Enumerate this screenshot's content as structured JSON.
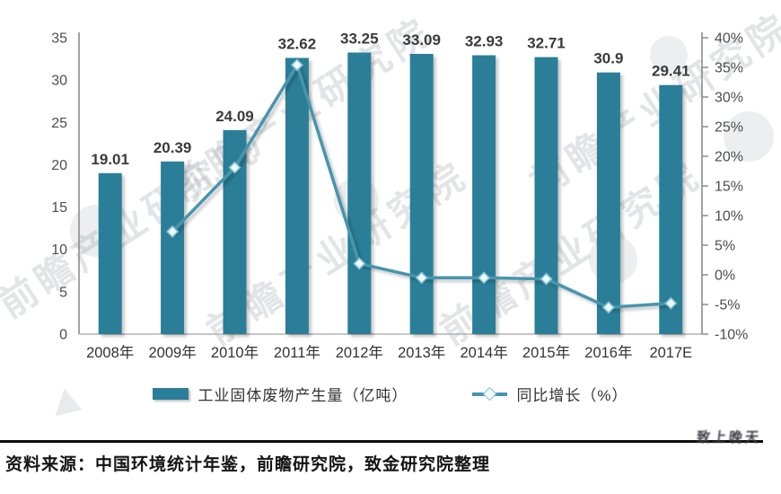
{
  "watermark": {
    "text": "前瞻产业研究院"
  },
  "legend": {
    "bar_label": "工业固体废物产生量（亿吨）",
    "line_label": "同比增长（%）"
  },
  "footer": {
    "source": "资料来源：中国环境统计年鉴，前瞻研究院，致金研究院整理",
    "logo": "致上晚天"
  },
  "colors": {
    "bar": "#2b7e97",
    "line": "#4695ad",
    "marker_fill": "#f0f9fb",
    "marker_stroke": "#7fc0d2",
    "bar_label": "#3a3a3a",
    "axis": "#8c8c8c",
    "baseline": "#b3b3b3",
    "tick_label": "#4d4d4d",
    "x_label": "#333333"
  },
  "chart_data": {
    "type": "combo",
    "title": "",
    "categories": [
      "2008年",
      "2009年",
      "2010年",
      "2011年",
      "2012年",
      "2013年",
      "2014年",
      "2015年",
      "2016年",
      "2017E"
    ],
    "series": [
      {
        "name": "工业固体废物产生量（亿吨）",
        "type": "bar",
        "axis": "left",
        "values": [
          19.01,
          20.39,
          24.09,
          32.62,
          33.25,
          33.09,
          32.93,
          32.71,
          30.9,
          29.41
        ]
      },
      {
        "name": "同比增长（%）",
        "type": "line",
        "axis": "right",
        "values": [
          null,
          7.3,
          18.1,
          35.4,
          1.9,
          -0.5,
          -0.5,
          -0.7,
          -5.5,
          -4.8
        ]
      }
    ],
    "bar_labels": [
      "19.01",
      "20.39",
      "24.09",
      "32.62",
      "33.25",
      "33.09",
      "32.93",
      "32.71",
      "30.9",
      "29.41"
    ],
    "left_axis": {
      "min": 0,
      "max": 35,
      "step": 5,
      "ticks": [
        "0",
        "5",
        "10",
        "15",
        "20",
        "25",
        "30",
        "35"
      ]
    },
    "right_axis": {
      "min": -10,
      "max": 40,
      "step": 5,
      "ticks": [
        "-10%",
        "-5%",
        "0%",
        "5%",
        "10%",
        "15%",
        "20%",
        "25%",
        "30%",
        "35%",
        "40%"
      ]
    },
    "grid": false,
    "legend_position": "bottom"
  }
}
